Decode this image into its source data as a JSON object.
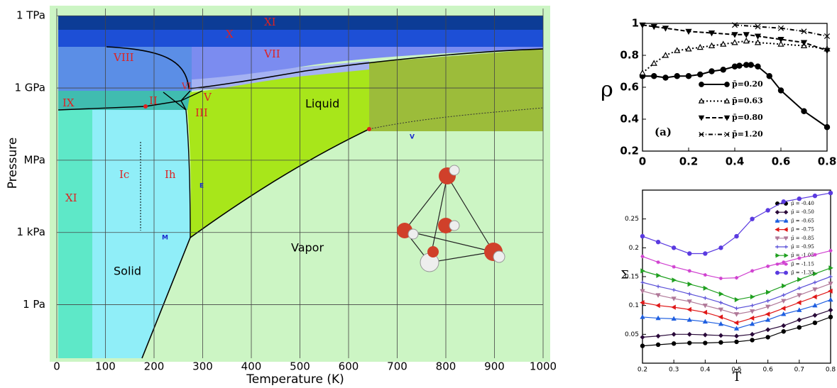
{
  "chart_data": [
    {
      "type": "phase",
      "xlabel": "Temperature (K)",
      "ylabel": "Pressure",
      "log_y": true,
      "grid": true,
      "xlim": [
        0,
        1000
      ],
      "xticks": [
        0,
        100,
        200,
        300,
        400,
        500,
        600,
        700,
        800,
        900,
        1000
      ],
      "ylim": [
        0.006,
        2000000000000
      ],
      "yticks": [
        {
          "value": 1,
          "label": "1 Pa"
        },
        {
          "value": 1000,
          "label": "1 kPa"
        },
        {
          "value": 1000000,
          "label": "MPa"
        },
        {
          "value": 1000000000,
          "label": "1 GPa"
        },
        {
          "value": 1000000000000,
          "label": "1 TPa"
        }
      ],
      "annotations": [
        "XI",
        "X",
        "VII",
        "VIII",
        "VI",
        "V",
        "II",
        "III",
        "IX",
        "Ic",
        "Ih",
        "XI",
        "Liquid",
        "Vapor",
        "Solid",
        "E",
        "M",
        "V"
      ]
    },
    {
      "type": "line",
      "ylabel": "ρ",
      "annotation": "(a)",
      "xlim": [
        0,
        0.8
      ],
      "xticks": [
        0,
        0.2,
        0.4,
        0.6,
        0.8
      ],
      "ylim": [
        0.2,
        1
      ],
      "yticks": [
        0.2,
        0.4,
        0.6,
        0.8,
        1
      ],
      "series": [
        {
          "name": "p̄=0.20",
          "color": "#000",
          "marker": "circle",
          "dash": "solid",
          "x": [
            0,
            0.05,
            0.1,
            0.15,
            0.2,
            0.25,
            0.3,
            0.35,
            0.4,
            0.42,
            0.45,
            0.47,
            0.5,
            0.55,
            0.6,
            0.7,
            0.8
          ],
          "values": [
            0.67,
            0.67,
            0.66,
            0.67,
            0.67,
            0.68,
            0.7,
            0.71,
            0.73,
            0.735,
            0.74,
            0.74,
            0.73,
            0.67,
            0.58,
            0.45,
            0.35
          ]
        },
        {
          "name": "p̄=0.63",
          "color": "#000",
          "marker": "triangle-up",
          "dash": "dotted",
          "x": [
            0,
            0.05,
            0.1,
            0.15,
            0.2,
            0.25,
            0.3,
            0.35,
            0.4,
            0.45,
            0.5,
            0.6,
            0.7,
            0.8
          ],
          "values": [
            0.69,
            0.75,
            0.8,
            0.83,
            0.84,
            0.85,
            0.86,
            0.87,
            0.88,
            0.89,
            0.88,
            0.87,
            0.86,
            0.84
          ]
        },
        {
          "name": "p̄=0.80",
          "color": "#000",
          "marker": "triangle-down",
          "dash": "dashed",
          "x": [
            0,
            0.05,
            0.1,
            0.2,
            0.3,
            0.4,
            0.45,
            0.5,
            0.6,
            0.7,
            0.8
          ],
          "values": [
            0.99,
            0.98,
            0.97,
            0.95,
            0.94,
            0.93,
            0.93,
            0.92,
            0.9,
            0.88,
            0.83
          ]
        },
        {
          "name": "p̄=1.20",
          "color": "#000",
          "marker": "cross",
          "dash": "dashdot",
          "x": [
            0.4,
            0.5,
            0.6,
            0.7,
            0.8
          ],
          "values": [
            0.99,
            0.98,
            0.97,
            0.95,
            0.92
          ]
        }
      ]
    },
    {
      "type": "line",
      "xlabel": "T̄",
      "ylabel": "Σ",
      "xlim": [
        0.2,
        0.8
      ],
      "xticks": [
        0.2,
        0.3,
        0.4,
        0.5,
        0.6,
        0.7,
        0.8
      ],
      "ylim": [
        0,
        0.3
      ],
      "yticks": [
        0.05,
        0.1,
        0.15,
        0.2,
        0.25
      ],
      "x": [
        0.2,
        0.25,
        0.3,
        0.35,
        0.4,
        0.45,
        0.5,
        0.55,
        0.6,
        0.65,
        0.7,
        0.75,
        0.8
      ],
      "series": [
        {
          "name": "μ̄ = -0.40",
          "color": "#000000",
          "marker": "circle",
          "values": [
            0.03,
            0.032,
            0.034,
            0.035,
            0.035,
            0.036,
            0.037,
            0.04,
            0.045,
            0.055,
            0.062,
            0.07,
            0.08
          ]
        },
        {
          "name": "μ̄ = -0.50",
          "color": "#2a0a3a",
          "marker": "diamond",
          "values": [
            0.045,
            0.047,
            0.05,
            0.05,
            0.049,
            0.048,
            0.047,
            0.05,
            0.058,
            0.065,
            0.075,
            0.083,
            0.092
          ]
        },
        {
          "name": "μ̄ = -0.65",
          "color": "#1f5fe0",
          "marker": "triangle-up",
          "values": [
            0.08,
            0.078,
            0.077,
            0.075,
            0.072,
            0.068,
            0.06,
            0.068,
            0.075,
            0.085,
            0.092,
            0.1,
            0.11
          ]
        },
        {
          "name": "μ̄ = -0.75",
          "color": "#e01818",
          "marker": "triangle-left",
          "values": [
            0.105,
            0.1,
            0.097,
            0.093,
            0.088,
            0.08,
            0.07,
            0.078,
            0.085,
            0.095,
            0.105,
            0.115,
            0.125
          ]
        },
        {
          "name": "μ̄ = -0.85",
          "color": "#b07898",
          "marker": "triangle-down",
          "values": [
            0.125,
            0.118,
            0.112,
            0.107,
            0.1,
            0.093,
            0.085,
            0.09,
            0.098,
            0.108,
            0.118,
            0.128,
            0.138
          ]
        },
        {
          "name": "μ̄ = -0.95",
          "color": "#5a50d8",
          "marker": "plus",
          "values": [
            0.14,
            0.133,
            0.127,
            0.12,
            0.113,
            0.105,
            0.095,
            0.1,
            0.108,
            0.118,
            0.13,
            0.14,
            0.15
          ]
        },
        {
          "name": "μ̄ = -1.05",
          "color": "#20a020",
          "marker": "triangle-right",
          "values": [
            0.16,
            0.152,
            0.144,
            0.137,
            0.13,
            0.12,
            0.11,
            0.115,
            0.123,
            0.134,
            0.145,
            0.155,
            0.165
          ]
        },
        {
          "name": "μ̄ = -1.15",
          "color": "#d040d0",
          "marker": "star",
          "values": [
            0.185,
            0.175,
            0.167,
            0.16,
            0.153,
            0.147,
            0.148,
            0.16,
            0.168,
            0.175,
            0.182,
            0.188,
            0.195
          ]
        },
        {
          "name": "μ̄ = -1.35",
          "color": "#5a3ae0",
          "marker": "circle",
          "values": [
            0.22,
            0.21,
            0.2,
            0.19,
            0.19,
            0.2,
            0.22,
            0.25,
            0.265,
            0.28,
            0.285,
            0.29,
            0.295
          ]
        }
      ]
    }
  ]
}
